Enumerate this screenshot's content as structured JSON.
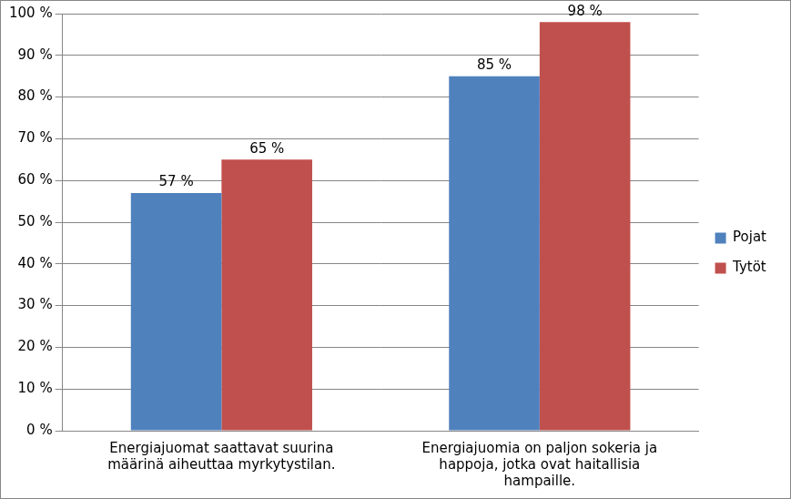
{
  "chart_data": {
    "type": "bar",
    "categories": [
      "Energiajuomat saattavat suurina määrinä aiheuttaa myrkytystilan.",
      "Energiajuomia on paljon sokeria ja happoja, jotka ovat haitallisia hampaille."
    ],
    "series": [
      {
        "name": "Pojat",
        "color": "#4f81bd",
        "values": [
          57,
          85
        ],
        "value_labels": [
          "57 %",
          "85 %"
        ]
      },
      {
        "name": "Tytöt",
        "color": "#c0504d",
        "values": [
          65,
          98
        ],
        "value_labels": [
          "65 %",
          "98 %"
        ]
      }
    ],
    "ylim": [
      0,
      100
    ],
    "yticks": [
      {
        "value": 0,
        "label": "0 %"
      },
      {
        "value": 10,
        "label": "10 %"
      },
      {
        "value": 20,
        "label": "20 %"
      },
      {
        "value": 30,
        "label": "30 %"
      },
      {
        "value": 40,
        "label": "40 %"
      },
      {
        "value": 50,
        "label": "50 %"
      },
      {
        "value": 60,
        "label": "60 %"
      },
      {
        "value": 70,
        "label": "70 %"
      },
      {
        "value": 80,
        "label": "80 %"
      },
      {
        "value": 90,
        "label": "90 %"
      },
      {
        "value": 100,
        "label": "100 %"
      }
    ],
    "grid": true,
    "legend": "right",
    "data_labels": true
  }
}
